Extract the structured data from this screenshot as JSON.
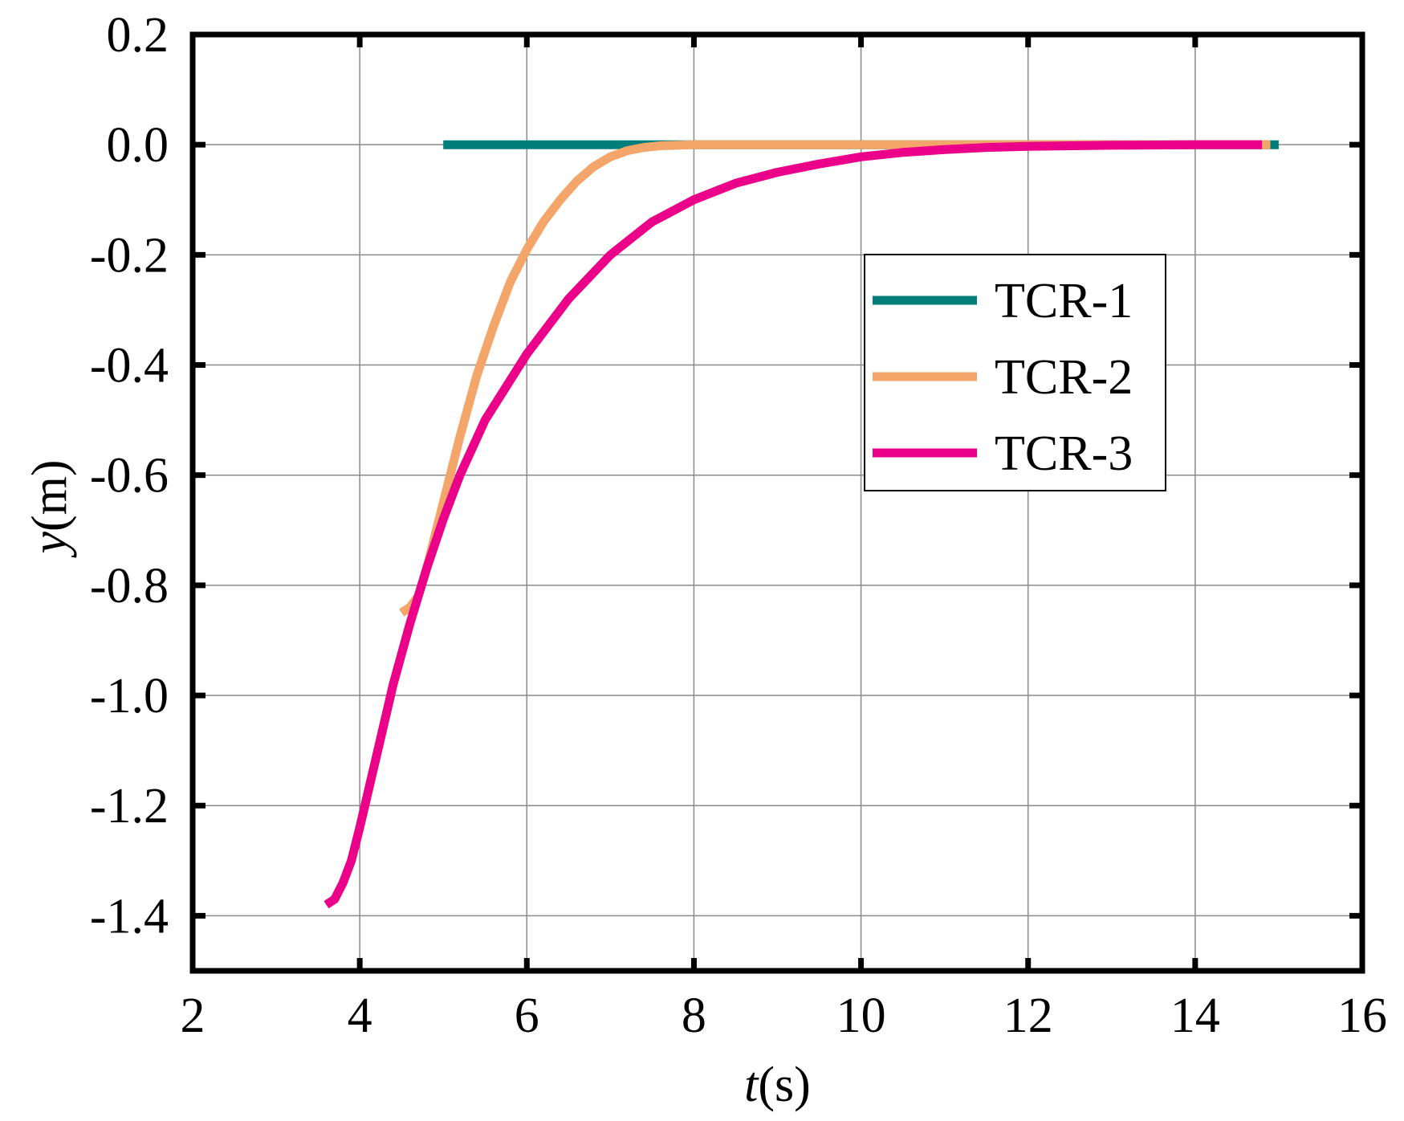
{
  "chart_data": {
    "type": "line",
    "title": "",
    "xlabel": "t(s)",
    "xlabel_var": "t",
    "xlabel_unit": "(s)",
    "ylabel": "y(m)",
    "ylabel_var": "y",
    "ylabel_unit": "(m)",
    "xlim": [
      2,
      16
    ],
    "ylim": [
      -1.5,
      0.2
    ],
    "xticks": [
      2,
      4,
      6,
      8,
      10,
      12,
      14,
      16
    ],
    "xtick_labels": [
      "2",
      "4",
      "6",
      "8",
      "10",
      "12",
      "14",
      "16"
    ],
    "yticks": [
      0.2,
      0.0,
      -0.2,
      -0.4,
      -0.6,
      -0.8,
      -1.0,
      -1.2,
      -1.4
    ],
    "ytick_labels": [
      "0.2",
      "0.0",
      "-0.2",
      "-0.4",
      "-0.6",
      "-0.8",
      "-1.0",
      "-1.2",
      "-1.4"
    ],
    "grid": true,
    "legend_position": "right-center",
    "series": [
      {
        "name": "TCR-1",
        "color": "#007f7a",
        "x": [
          5.0,
          6.0,
          8.0,
          10.0,
          12.0,
          14.0,
          15.0
        ],
        "y": [
          0.0,
          0.0,
          0.0,
          0.0,
          0.0,
          0.0,
          0.0
        ]
      },
      {
        "name": "TCR-2",
        "color": "#f4a66a",
        "x": [
          4.5,
          4.6,
          4.7,
          4.8,
          5.0,
          5.2,
          5.4,
          5.6,
          5.8,
          6.0,
          6.2,
          6.4,
          6.6,
          6.8,
          7.0,
          7.2,
          7.4,
          7.6,
          7.8,
          8.0,
          9.0,
          10.0,
          12.0,
          14.0,
          14.9
        ],
        "y": [
          -0.85,
          -0.84,
          -0.82,
          -0.77,
          -0.65,
          -0.53,
          -0.42,
          -0.33,
          -0.25,
          -0.19,
          -0.14,
          -0.1,
          -0.066,
          -0.04,
          -0.022,
          -0.011,
          -0.005,
          -0.002,
          -0.001,
          0.0,
          0.0,
          0.0,
          0.0,
          0.0,
          0.0
        ]
      },
      {
        "name": "TCR-3",
        "color": "#eb0089",
        "x": [
          3.6,
          3.7,
          3.8,
          3.9,
          4.0,
          4.2,
          4.4,
          4.6,
          4.8,
          5.0,
          5.2,
          5.5,
          6.0,
          6.5,
          7.0,
          7.5,
          8.0,
          8.5,
          9.0,
          9.5,
          10.0,
          10.5,
          11.0,
          11.5,
          12.0,
          13.0,
          14.0,
          14.8
        ],
        "y": [
          -1.38,
          -1.37,
          -1.34,
          -1.3,
          -1.24,
          -1.11,
          -0.98,
          -0.87,
          -0.77,
          -0.68,
          -0.6,
          -0.5,
          -0.38,
          -0.28,
          -0.2,
          -0.14,
          -0.1,
          -0.07,
          -0.05,
          -0.035,
          -0.022,
          -0.014,
          -0.009,
          -0.005,
          -0.003,
          -0.001,
          0.0,
          0.0
        ]
      }
    ]
  }
}
